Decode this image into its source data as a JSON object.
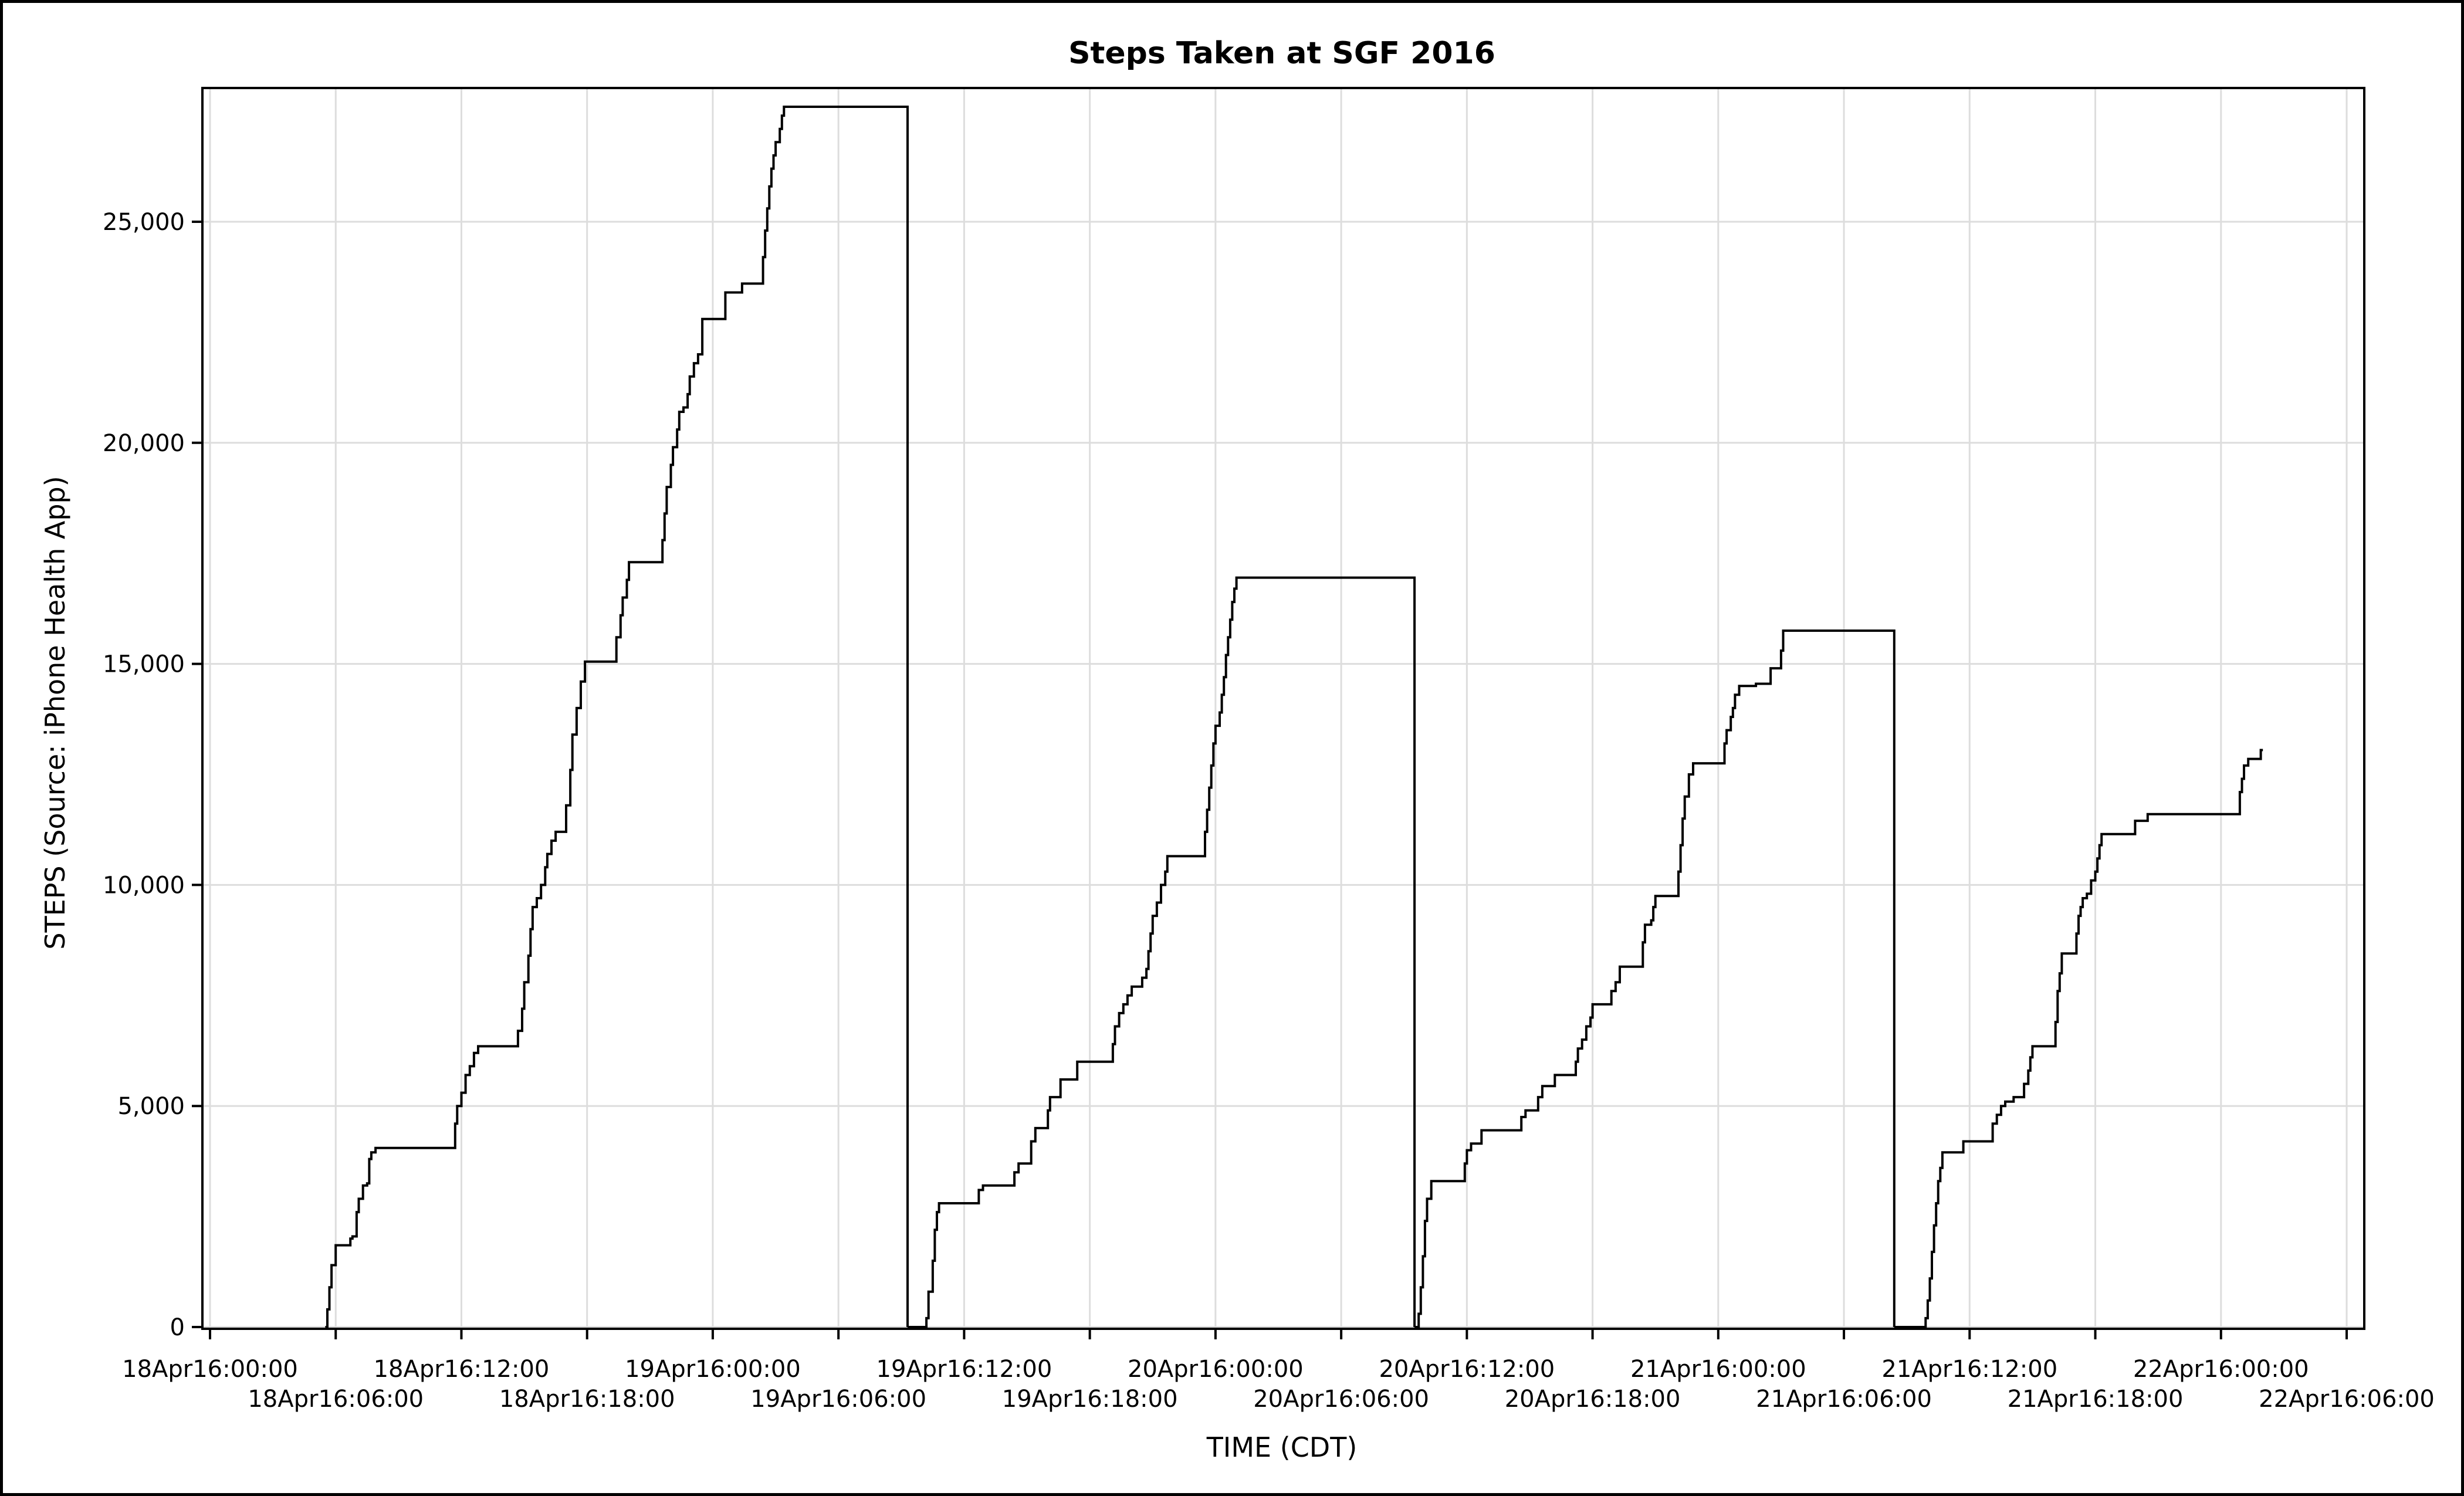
{
  "chart_data": {
    "type": "line",
    "step": true,
    "title": "Steps Taken at SGF 2016",
    "xlabel": "TIME (CDT)",
    "ylabel": "STEPS (Source: iPhone Health App)",
    "x_unit": "hours",
    "xlim": [
      0,
      102
    ],
    "ylim": [
      0,
      27600
    ],
    "grid": true,
    "legend": "none",
    "line_color": "#000000",
    "grid_color": "#dddddd",
    "x_ticks": [
      {
        "x": 0,
        "label": "18Apr16:00:00"
      },
      {
        "x": 6,
        "label": "18Apr16:06:00"
      },
      {
        "x": 12,
        "label": "18Apr16:12:00"
      },
      {
        "x": 18,
        "label": "18Apr16:18:00"
      },
      {
        "x": 24,
        "label": "19Apr16:00:00"
      },
      {
        "x": 30,
        "label": "19Apr16:06:00"
      },
      {
        "x": 36,
        "label": "19Apr16:12:00"
      },
      {
        "x": 42,
        "label": "19Apr16:18:00"
      },
      {
        "x": 48,
        "label": "20Apr16:00:00"
      },
      {
        "x": 54,
        "label": "20Apr16:06:00"
      },
      {
        "x": 60,
        "label": "20Apr16:12:00"
      },
      {
        "x": 66,
        "label": "20Apr16:18:00"
      },
      {
        "x": 72,
        "label": "21Apr16:00:00"
      },
      {
        "x": 78,
        "label": "21Apr16:06:00"
      },
      {
        "x": 84,
        "label": "21Apr16:12:00"
      },
      {
        "x": 90,
        "label": "21Apr16:18:00"
      },
      {
        "x": 96,
        "label": "22Apr16:00:00"
      },
      {
        "x": 102,
        "label": "22Apr16:06:00"
      }
    ],
    "y_ticks": [
      {
        "y": 0,
        "label": "0"
      },
      {
        "y": 5000,
        "label": "5,000"
      },
      {
        "y": 10000,
        "label": "10,000"
      },
      {
        "y": 15000,
        "label": "15,000"
      },
      {
        "y": 20000,
        "label": "20,000"
      },
      {
        "y": 25000,
        "label": "25,000"
      }
    ],
    "series": [
      {
        "points": [
          [
            5.5,
            0
          ],
          [
            5.6,
            400
          ],
          [
            5.7,
            900
          ],
          [
            5.8,
            1400
          ],
          [
            6.0,
            1850
          ],
          [
            6.6,
            1850
          ],
          [
            6.7,
            2000
          ],
          [
            6.8,
            2050
          ],
          [
            7.0,
            2600
          ],
          [
            7.1,
            2900
          ],
          [
            7.3,
            3200
          ],
          [
            7.5,
            3250
          ],
          [
            7.6,
            3800
          ],
          [
            7.7,
            3950
          ],
          [
            7.9,
            4050
          ],
          [
            11.6,
            4050
          ],
          [
            11.7,
            4600
          ],
          [
            11.8,
            5000
          ],
          [
            12.0,
            5300
          ],
          [
            12.2,
            5700
          ],
          [
            12.4,
            5900
          ],
          [
            12.6,
            6200
          ],
          [
            12.8,
            6350
          ],
          [
            14.6,
            6350
          ],
          [
            14.7,
            6700
          ],
          [
            14.9,
            7200
          ],
          [
            15.0,
            7800
          ],
          [
            15.2,
            8400
          ],
          [
            15.3,
            9000
          ],
          [
            15.4,
            9500
          ],
          [
            15.6,
            9700
          ],
          [
            15.8,
            10000
          ],
          [
            16.0,
            10400
          ],
          [
            16.1,
            10700
          ],
          [
            16.3,
            11000
          ],
          [
            16.5,
            11200
          ],
          [
            16.9,
            11200
          ],
          [
            17.0,
            11800
          ],
          [
            17.2,
            12600
          ],
          [
            17.3,
            13400
          ],
          [
            17.5,
            14000
          ],
          [
            17.7,
            14600
          ],
          [
            17.9,
            15050
          ],
          [
            19.3,
            15050
          ],
          [
            19.4,
            15600
          ],
          [
            19.6,
            16100
          ],
          [
            19.7,
            16500
          ],
          [
            19.9,
            16900
          ],
          [
            20.0,
            17300
          ],
          [
            21.5,
            17300
          ],
          [
            21.6,
            17800
          ],
          [
            21.7,
            18400
          ],
          [
            21.8,
            19000
          ],
          [
            22.0,
            19500
          ],
          [
            22.1,
            19900
          ],
          [
            22.3,
            20300
          ],
          [
            22.4,
            20700
          ],
          [
            22.6,
            20800
          ],
          [
            22.8,
            21100
          ],
          [
            22.9,
            21500
          ],
          [
            23.1,
            21800
          ],
          [
            23.3,
            22000
          ],
          [
            23.5,
            22800
          ],
          [
            24.5,
            22800
          ],
          [
            24.6,
            23400
          ],
          [
            25.3,
            23400
          ],
          [
            25.4,
            23600
          ],
          [
            26.3,
            23600
          ],
          [
            26.4,
            24200
          ],
          [
            26.5,
            24800
          ],
          [
            26.6,
            25300
          ],
          [
            26.7,
            25800
          ],
          [
            26.8,
            26200
          ],
          [
            26.9,
            26500
          ],
          [
            27.0,
            26800
          ],
          [
            27.2,
            27100
          ],
          [
            27.3,
            27400
          ],
          [
            27.4,
            27600
          ],
          [
            33.3,
            27600
          ],
          [
            33.3,
            0
          ]
        ]
      },
      {
        "points": [
          [
            33.3,
            0
          ],
          [
            34.0,
            0
          ],
          [
            34.2,
            200
          ],
          [
            34.3,
            800
          ],
          [
            34.5,
            1500
          ],
          [
            34.6,
            2200
          ],
          [
            34.7,
            2600
          ],
          [
            34.8,
            2800
          ],
          [
            36.5,
            2800
          ],
          [
            36.7,
            3100
          ],
          [
            36.9,
            3200
          ],
          [
            38.3,
            3200
          ],
          [
            38.4,
            3500
          ],
          [
            38.6,
            3700
          ],
          [
            39.1,
            3700
          ],
          [
            39.2,
            4200
          ],
          [
            39.4,
            4500
          ],
          [
            39.8,
            4500
          ],
          [
            40.0,
            4900
          ],
          [
            40.1,
            5200
          ],
          [
            40.5,
            5200
          ],
          [
            40.6,
            5600
          ],
          [
            41.3,
            5600
          ],
          [
            41.4,
            6000
          ],
          [
            43.0,
            6000
          ],
          [
            43.1,
            6400
          ],
          [
            43.2,
            6800
          ],
          [
            43.4,
            7100
          ],
          [
            43.6,
            7300
          ],
          [
            43.8,
            7500
          ],
          [
            44.0,
            7700
          ],
          [
            44.4,
            7700
          ],
          [
            44.5,
            7900
          ],
          [
            44.7,
            8100
          ],
          [
            44.8,
            8500
          ],
          [
            44.9,
            8900
          ],
          [
            45.0,
            9300
          ],
          [
            45.2,
            9600
          ],
          [
            45.4,
            10000
          ],
          [
            45.6,
            10300
          ],
          [
            45.7,
            10650
          ],
          [
            47.4,
            10650
          ],
          [
            47.5,
            11200
          ],
          [
            47.6,
            11700
          ],
          [
            47.7,
            12200
          ],
          [
            47.8,
            12700
          ],
          [
            47.9,
            13200
          ],
          [
            48.0,
            13600
          ],
          [
            48.2,
            13900
          ],
          [
            48.3,
            14300
          ],
          [
            48.4,
            14700
          ],
          [
            48.5,
            15200
          ],
          [
            48.6,
            15600
          ],
          [
            48.7,
            16000
          ],
          [
            48.8,
            16400
          ],
          [
            48.9,
            16700
          ],
          [
            49.0,
            16950
          ],
          [
            57.5,
            16950
          ],
          [
            57.5,
            0
          ]
        ]
      },
      {
        "points": [
          [
            57.5,
            0
          ],
          [
            57.6,
            0
          ],
          [
            57.7,
            300
          ],
          [
            57.8,
            900
          ],
          [
            57.9,
            1600
          ],
          [
            58.0,
            2400
          ],
          [
            58.1,
            2900
          ],
          [
            58.3,
            3300
          ],
          [
            59.8,
            3300
          ],
          [
            59.9,
            3700
          ],
          [
            60.0,
            4000
          ],
          [
            60.2,
            4150
          ],
          [
            60.6,
            4150
          ],
          [
            60.7,
            4450
          ],
          [
            62.5,
            4450
          ],
          [
            62.6,
            4750
          ],
          [
            62.8,
            4900
          ],
          [
            63.3,
            4900
          ],
          [
            63.4,
            5200
          ],
          [
            63.6,
            5450
          ],
          [
            64.1,
            5450
          ],
          [
            64.2,
            5700
          ],
          [
            65.1,
            5700
          ],
          [
            65.2,
            6000
          ],
          [
            65.3,
            6300
          ],
          [
            65.5,
            6500
          ],
          [
            65.7,
            6800
          ],
          [
            65.9,
            7000
          ],
          [
            66.0,
            7300
          ],
          [
            66.8,
            7300
          ],
          [
            66.9,
            7600
          ],
          [
            67.1,
            7800
          ],
          [
            67.3,
            8150
          ],
          [
            68.3,
            8150
          ],
          [
            68.4,
            8700
          ],
          [
            68.5,
            9100
          ],
          [
            68.8,
            9200
          ],
          [
            68.9,
            9500
          ],
          [
            69.0,
            9750
          ],
          [
            70.0,
            9750
          ],
          [
            70.1,
            10300
          ],
          [
            70.2,
            10900
          ],
          [
            70.3,
            11500
          ],
          [
            70.4,
            12000
          ],
          [
            70.6,
            12500
          ],
          [
            70.8,
            12750
          ],
          [
            72.2,
            12750
          ],
          [
            72.3,
            13200
          ],
          [
            72.4,
            13500
          ],
          [
            72.6,
            13800
          ],
          [
            72.7,
            14000
          ],
          [
            72.8,
            14300
          ],
          [
            73.0,
            14500
          ],
          [
            73.6,
            14500
          ],
          [
            73.8,
            14550
          ],
          [
            74.4,
            14550
          ],
          [
            74.5,
            14900
          ],
          [
            74.9,
            14900
          ],
          [
            75.0,
            15300
          ],
          [
            75.1,
            15750
          ],
          [
            80.4,
            15750
          ],
          [
            80.4,
            0
          ]
        ]
      },
      {
        "points": [
          [
            80.4,
            0
          ],
          [
            81.8,
            0
          ],
          [
            81.9,
            200
          ],
          [
            82.0,
            600
          ],
          [
            82.1,
            1100
          ],
          [
            82.2,
            1700
          ],
          [
            82.3,
            2300
          ],
          [
            82.4,
            2800
          ],
          [
            82.5,
            3300
          ],
          [
            82.6,
            3600
          ],
          [
            82.7,
            3950
          ],
          [
            83.6,
            3950
          ],
          [
            83.7,
            4200
          ],
          [
            85.0,
            4200
          ],
          [
            85.1,
            4600
          ],
          [
            85.3,
            4800
          ],
          [
            85.5,
            5000
          ],
          [
            85.7,
            5100
          ],
          [
            86.0,
            5100
          ],
          [
            86.1,
            5200
          ],
          [
            86.4,
            5200
          ],
          [
            86.6,
            5500
          ],
          [
            86.8,
            5800
          ],
          [
            86.9,
            6100
          ],
          [
            87.0,
            6350
          ],
          [
            88.0,
            6350
          ],
          [
            88.1,
            6900
          ],
          [
            88.2,
            7600
          ],
          [
            88.3,
            8000
          ],
          [
            88.4,
            8450
          ],
          [
            89.0,
            8450
          ],
          [
            89.1,
            8900
          ],
          [
            89.2,
            9300
          ],
          [
            89.3,
            9500
          ],
          [
            89.4,
            9700
          ],
          [
            89.6,
            9800
          ],
          [
            89.8,
            10100
          ],
          [
            90.0,
            10300
          ],
          [
            90.1,
            10600
          ],
          [
            90.2,
            10900
          ],
          [
            90.3,
            11150
          ],
          [
            91.8,
            11150
          ],
          [
            91.9,
            11450
          ],
          [
            92.4,
            11450
          ],
          [
            92.5,
            11600
          ],
          [
            96.8,
            11600
          ],
          [
            96.9,
            12100
          ],
          [
            97.0,
            12400
          ],
          [
            97.1,
            12700
          ],
          [
            97.3,
            12850
          ],
          [
            97.8,
            12850
          ],
          [
            97.9,
            13050
          ],
          [
            98.0,
            13050
          ]
        ]
      }
    ]
  }
}
